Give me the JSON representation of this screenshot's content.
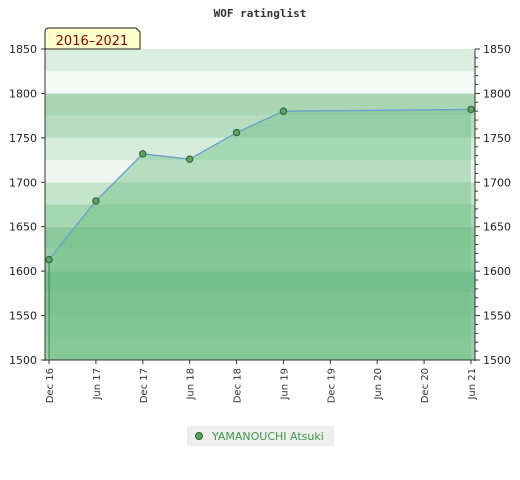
{
  "chart_data": {
    "type": "area",
    "title": "WOF ratinglist",
    "period_badge": "2016–2021",
    "x": [
      "2016-12",
      "2017-06",
      "2017-12",
      "2018-06",
      "2018-12",
      "2019-06",
      "2021-06"
    ],
    "x_tick_labels": [
      "Dec 16",
      "Jun 17",
      "Dec 17",
      "Jun 18",
      "Dec 18",
      "Jun 19",
      "Dec 19",
      "Jun 20",
      "Dec 20",
      "Jun 21"
    ],
    "ylim": [
      1500,
      1850
    ],
    "y_ticks": [
      1500,
      1550,
      1600,
      1650,
      1700,
      1750,
      1800,
      1850
    ],
    "series": [
      {
        "name": "YAMANOUCHI Atsuki",
        "values": [
          1613,
          1679,
          1732,
          1726,
          1756,
          1780,
          1782
        ]
      }
    ],
    "legend_position": "bottom-center",
    "colors": {
      "line": "#6a9fd0",
      "marker": "#57a65f",
      "legend_text": "#3f9a49",
      "badge_fill": "#ffffcc"
    }
  }
}
